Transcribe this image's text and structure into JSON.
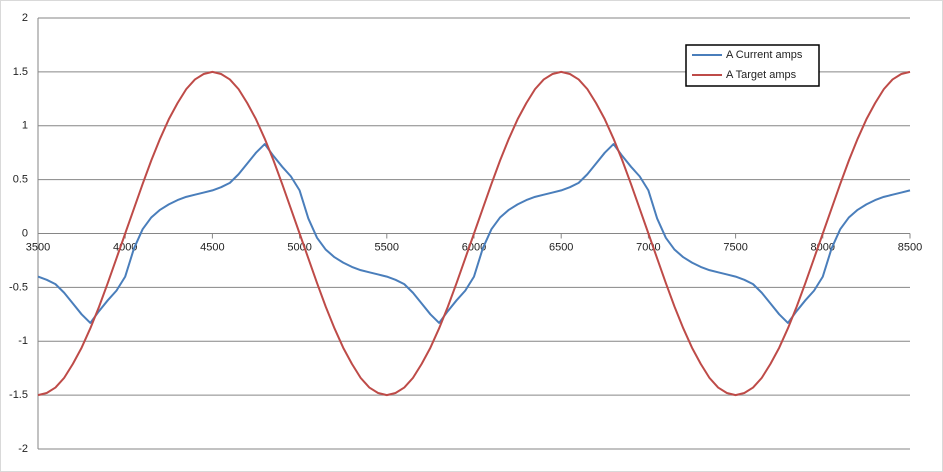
{
  "chart_data": {
    "type": "line",
    "grid": true,
    "legend": "upper right",
    "x": [
      3500,
      3550,
      3600,
      3650,
      3700,
      3750,
      3800,
      3850,
      3900,
      3950,
      4000,
      4050,
      4100,
      4150,
      4200,
      4250,
      4300,
      4350,
      4400,
      4450,
      4500,
      4550,
      4600,
      4650,
      4700,
      4750,
      4800,
      4850,
      4900,
      4950,
      5000,
      5050,
      5100,
      5150,
      5200,
      5250,
      5300,
      5350,
      5400,
      5450,
      5500,
      5550,
      5600,
      5650,
      5700,
      5750,
      5800,
      5850,
      5900,
      5950,
      6000,
      6050,
      6100,
      6150,
      6200,
      6250,
      6300,
      6350,
      6400,
      6450,
      6500,
      6550,
      6600,
      6650,
      6700,
      6750,
      6800,
      6850,
      6900,
      6950,
      7000,
      7050,
      7100,
      7150,
      7200,
      7250,
      7300,
      7350,
      7400,
      7450,
      7500,
      7550,
      7600,
      7650,
      7700,
      7750,
      7800,
      7850,
      7900,
      7950,
      8000,
      8050,
      8100,
      8150,
      8200,
      8250,
      8300,
      8350,
      8400,
      8450,
      8500
    ],
    "series": [
      {
        "name": "A Current amps",
        "color": "#4a7ebb",
        "values": [
          -0.4,
          -0.43,
          -0.47,
          -0.55,
          -0.65,
          -0.75,
          -0.83,
          -0.72,
          -0.62,
          -0.53,
          -0.4,
          -0.14,
          0.04,
          0.15,
          0.22,
          0.27,
          0.31,
          0.34,
          0.36,
          0.38,
          0.4,
          0.43,
          0.47,
          0.55,
          0.65,
          0.75,
          0.83,
          0.72,
          0.62,
          0.53,
          0.4,
          0.14,
          -0.04,
          -0.15,
          -0.22,
          -0.27,
          -0.31,
          -0.34,
          -0.36,
          -0.38,
          -0.4,
          -0.43,
          -0.47,
          -0.55,
          -0.65,
          -0.75,
          -0.83,
          -0.72,
          -0.62,
          -0.53,
          -0.4,
          -0.14,
          0.04,
          0.15,
          0.22,
          0.27,
          0.31,
          0.34,
          0.36,
          0.38,
          0.4,
          0.43,
          0.47,
          0.55,
          0.65,
          0.75,
          0.83,
          0.72,
          0.62,
          0.53,
          0.4,
          0.14,
          -0.04,
          -0.15,
          -0.22,
          -0.27,
          -0.31,
          -0.34,
          -0.36,
          -0.38,
          -0.4,
          -0.43,
          -0.47,
          -0.55,
          -0.65,
          -0.75,
          -0.83,
          -0.72,
          -0.62,
          -0.53,
          -0.4,
          -0.14,
          0.04,
          0.15,
          0.22,
          0.27,
          0.31,
          0.34,
          0.36,
          0.38,
          0.4
        ]
      },
      {
        "name": "A Target amps",
        "color": "#be4b48",
        "values": [
          -1.5,
          -1.48,
          -1.43,
          -1.34,
          -1.21,
          -1.06,
          -0.88,
          -0.68,
          -0.46,
          -0.23,
          0,
          0.23,
          0.46,
          0.68,
          0.88,
          1.06,
          1.21,
          1.34,
          1.43,
          1.48,
          1.5,
          1.48,
          1.43,
          1.34,
          1.21,
          1.06,
          0.88,
          0.68,
          0.46,
          0.23,
          0,
          -0.23,
          -0.46,
          -0.68,
          -0.88,
          -1.06,
          -1.21,
          -1.34,
          -1.43,
          -1.48,
          -1.5,
          -1.48,
          -1.43,
          -1.34,
          -1.21,
          -1.06,
          -0.88,
          -0.68,
          -0.46,
          -0.23,
          0,
          0.23,
          0.46,
          0.68,
          0.88,
          1.06,
          1.21,
          1.34,
          1.43,
          1.48,
          1.5,
          1.48,
          1.43,
          1.34,
          1.21,
          1.06,
          0.88,
          0.68,
          0.46,
          0.23,
          0,
          -0.23,
          -0.46,
          -0.68,
          -0.88,
          -1.06,
          -1.21,
          -1.34,
          -1.43,
          -1.48,
          -1.5,
          -1.48,
          -1.43,
          -1.34,
          -1.21,
          -1.06,
          -0.88,
          -0.68,
          -0.46,
          -0.23,
          0,
          0.23,
          0.46,
          0.68,
          0.88,
          1.06,
          1.21,
          1.34,
          1.43,
          1.48,
          1.5
        ]
      }
    ],
    "xlim": [
      3500,
      8500
    ],
    "xticks": [
      3500,
      4000,
      4500,
      5000,
      5500,
      6000,
      6500,
      7000,
      7500,
      8000,
      8500
    ],
    "ylim": [
      -2,
      2
    ],
    "yticks": [
      -2,
      -1.5,
      -1,
      -0.5,
      0,
      0.5,
      1,
      1.5,
      2
    ]
  }
}
